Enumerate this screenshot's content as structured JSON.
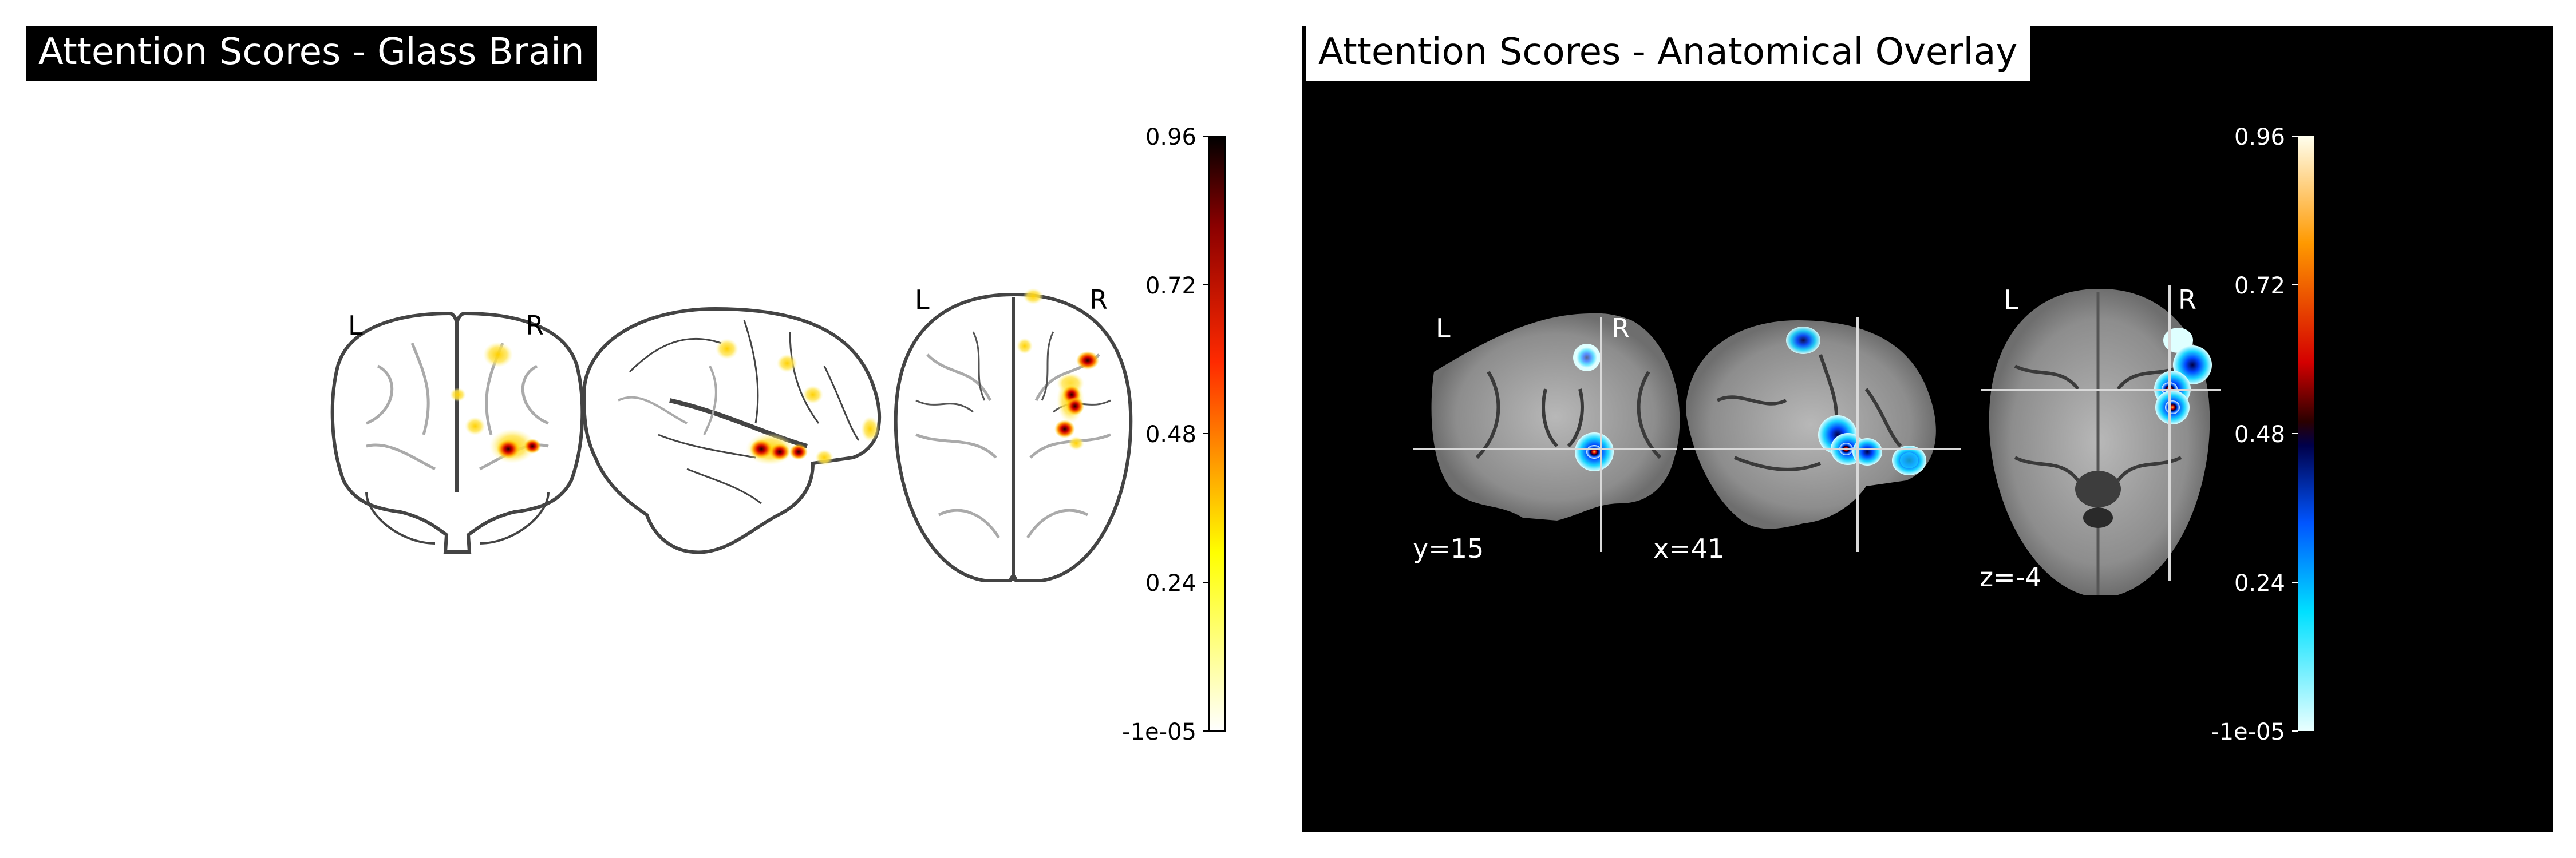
{
  "left": {
    "title": "Attention Scores - Glass Brain",
    "orientation": {
      "left": "L",
      "right": "R"
    },
    "colorbar": {
      "colormap": "hot_r",
      "ticks": [
        "0.96",
        "0.72",
        "0.48",
        "0.24",
        "-1e-05"
      ],
      "min": -1e-05,
      "max": 0.96
    }
  },
  "right": {
    "title": "Attention Scores - Anatomical Overlay",
    "orientation": {
      "left": "L",
      "right": "R"
    },
    "cuts": {
      "coronal": "y=15",
      "sagittal": "x=41",
      "axial": "z=-4"
    },
    "colorbar": {
      "colormap": "cold_hot",
      "ticks": [
        "0.96",
        "0.72",
        "0.48",
        "0.24",
        "-1e-05"
      ],
      "min": -1e-05,
      "max": 0.96
    }
  },
  "colors": {
    "background_right": "#000000",
    "crosshair": "#d9d9d9",
    "glass_outline": "#444444"
  }
}
